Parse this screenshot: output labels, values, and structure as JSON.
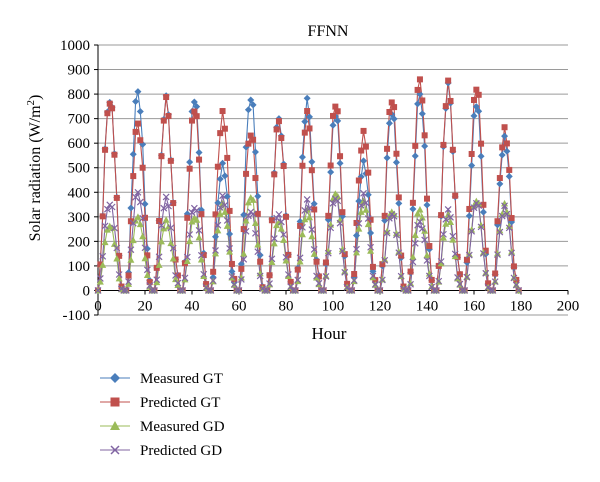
{
  "chart_data": {
    "type": "line",
    "title": "FFNN",
    "xlabel": "Hour",
    "ylabel": "Solar radiation (W/m²)",
    "ylabel_main": "Solar radiation (W/m",
    "ylabel_sup": "2",
    "ylabel_close": ")",
    "xlim": [
      0,
      200
    ],
    "ylim": [
      -100,
      1000
    ],
    "x_ticks": [
      0,
      20,
      40,
      60,
      80,
      100,
      120,
      140,
      160,
      180,
      200
    ],
    "y_ticks": [
      -100,
      0,
      100,
      200,
      300,
      400,
      500,
      600,
      700,
      800,
      900,
      1000
    ],
    "grid": "horizontal",
    "legend_position": "bottom",
    "days": 15,
    "hours_per_day": 12,
    "series": [
      {
        "name": "Measured GT",
        "color": "#4a7ebb",
        "marker": "diamond",
        "peaks": [
          790,
          810,
          770,
          780,
          510,
          800,
          700,
          760,
          720,
          520,
          740,
          800,
          820,
          760,
          620
        ]
      },
      {
        "name": "Predicted GT",
        "color": "#c0504d",
        "marker": "square",
        "peaks": [
          785,
          680,
          765,
          740,
          720,
          650,
          690,
          710,
          760,
          640,
          790,
          860,
          830,
          830,
          655
        ]
      },
      {
        "name": "Measured GD",
        "color": "#9bbb59",
        "marker": "triangle",
        "peaks": [
          270,
          300,
          280,
          300,
          350,
          390,
          280,
          320,
          400,
          360,
          330,
          330,
          300,
          370,
          350
        ]
      },
      {
        "name": "Predicted GD",
        "color": "#8064a2",
        "marker": "x",
        "peaks": [
          360,
          400,
          370,
          340,
          380,
          330,
          310,
          360,
          380,
          390,
          320,
          280,
          320,
          360,
          340
        ]
      }
    ]
  }
}
